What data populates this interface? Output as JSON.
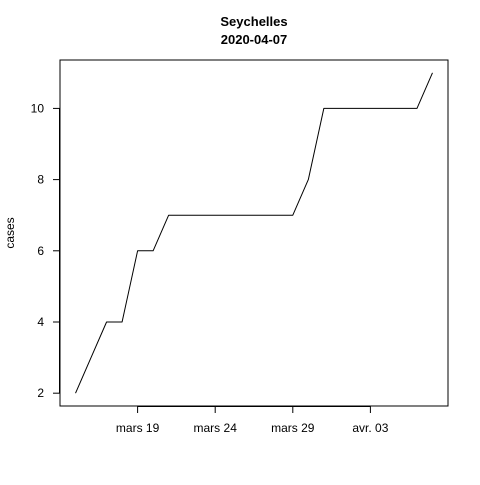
{
  "chart_data": {
    "type": "line",
    "title": "Seychelles",
    "subtitle": "2020-04-07",
    "xlabel": "",
    "ylabel": "cases",
    "x_tick_labels": [
      {
        "date": "2020-03-19",
        "label": "mars 19"
      },
      {
        "date": "2020-03-24",
        "label": "mars 24"
      },
      {
        "date": "2020-03-29",
        "label": "mars 29"
      },
      {
        "date": "2020-04-03",
        "label": "avr. 03"
      }
    ],
    "y_ticks": [
      2,
      4,
      6,
      8,
      10
    ],
    "xlim": [
      "2020-03-14",
      "2020-04-08"
    ],
    "ylim": [
      1.64,
      11.36
    ],
    "grid": false,
    "line_color": "#000000",
    "series": [
      {
        "x": [
          "2020-03-15",
          "2020-03-16",
          "2020-03-17",
          "2020-03-18",
          "2020-03-19",
          "2020-03-20",
          "2020-03-21",
          "2020-03-22",
          "2020-03-23",
          "2020-03-24",
          "2020-03-25",
          "2020-03-26",
          "2020-03-27",
          "2020-03-28",
          "2020-03-29",
          "2020-03-30",
          "2020-03-31",
          "2020-04-01",
          "2020-04-02",
          "2020-04-03",
          "2020-04-04",
          "2020-04-05",
          "2020-04-06",
          "2020-04-07"
        ],
        "values": [
          2,
          3,
          4,
          4,
          6,
          6,
          7,
          7,
          7,
          7,
          7,
          7,
          7,
          7,
          7,
          8,
          10,
          10,
          10,
          10,
          10,
          10,
          10,
          11
        ]
      }
    ]
  }
}
